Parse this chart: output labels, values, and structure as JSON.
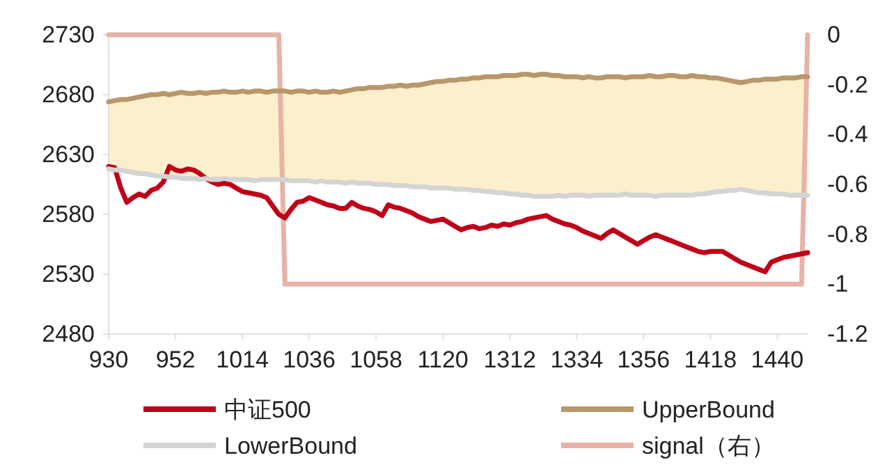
{
  "chart_data": {
    "type": "line",
    "categories": [
      "930",
      null,
      null,
      null,
      null,
      null,
      null,
      null,
      null,
      null,
      null,
      "952",
      null,
      null,
      null,
      null,
      null,
      null,
      null,
      null,
      null,
      null,
      "1014",
      null,
      null,
      null,
      null,
      null,
      null,
      null,
      null,
      null,
      null,
      "1036",
      null,
      null,
      null,
      null,
      null,
      null,
      null,
      null,
      null,
      null,
      "1058",
      null,
      null,
      null,
      null,
      null,
      null,
      null,
      null,
      null,
      null,
      "1120",
      null,
      null,
      null,
      null,
      null,
      null,
      null,
      null,
      null,
      null,
      "1312",
      null,
      null,
      null,
      null,
      null,
      null,
      null,
      null,
      null,
      null,
      "1334",
      null,
      null,
      null,
      null,
      null,
      null,
      null,
      null,
      null,
      null,
      "1356",
      null,
      null,
      null,
      null,
      null,
      null,
      null,
      null,
      null,
      null,
      "1418",
      null,
      null,
      null,
      null,
      null,
      null,
      null,
      null,
      null,
      null,
      "1440",
      null,
      null,
      null,
      null,
      null
    ],
    "series": [
      {
        "name": "中证500",
        "color": "#c00018",
        "values": [
          2620,
          2619,
          2602,
          2590,
          2594,
          2597,
          2595,
          2600,
          2602,
          2607,
          2620,
          2617,
          2616,
          2618,
          2617,
          2614,
          2610,
          2607,
          2605,
          2606,
          2605,
          2602,
          2599,
          2598,
          2597,
          2596,
          2594,
          2587,
          2580,
          2577,
          2584,
          2590,
          2591,
          2594,
          2592,
          2590,
          2588,
          2587,
          2585,
          2585,
          2590,
          2587,
          2585,
          2584,
          2582,
          2579,
          2588,
          2586,
          2585,
          2583,
          2581,
          2578,
          2576,
          2574,
          2575,
          2576,
          2573,
          2570,
          2567,
          2569,
          2570,
          2568,
          2569,
          2571,
          2570,
          2572,
          2571,
          2573,
          2574,
          2576,
          2577,
          2578,
          2579,
          2576,
          2574,
          2572,
          2571,
          2569,
          2566,
          2564,
          2562,
          2560,
          2564,
          2567,
          2564,
          2561,
          2558,
          2555,
          2558,
          2561,
          2563,
          2561,
          2559,
          2557,
          2555,
          2553,
          2551,
          2549,
          2548,
          2549,
          2549,
          2549,
          2546,
          2543,
          2540,
          2538,
          2536,
          2534,
          2532,
          2540,
          2542,
          2544,
          2545,
          2546,
          2547,
          2548
        ]
      },
      {
        "name": "UpperBound",
        "color": "#b8976a",
        "values": [
          2674,
          2675,
          2676,
          2676,
          2677,
          2678,
          2679,
          2680,
          2680,
          2681,
          2680,
          2681,
          2682,
          2681,
          2681,
          2682,
          2681,
          2682,
          2682,
          2683,
          2682,
          2682,
          2683,
          2682,
          2683,
          2683,
          2682,
          2683,
          2683,
          2683,
          2682,
          2683,
          2683,
          2682,
          2683,
          2682,
          2682,
          2683,
          2682,
          2683,
          2684,
          2685,
          2685,
          2686,
          2686,
          2686,
          2687,
          2687,
          2688,
          2687,
          2688,
          2688,
          2689,
          2690,
          2691,
          2691,
          2692,
          2692,
          2693,
          2693,
          2694,
          2694,
          2695,
          2695,
          2695,
          2696,
          2696,
          2696,
          2697,
          2697,
          2696,
          2697,
          2697,
          2696,
          2696,
          2695,
          2695,
          2695,
          2694,
          2695,
          2694,
          2694,
          2695,
          2695,
          2695,
          2694,
          2695,
          2695,
          2695,
          2696,
          2695,
          2695,
          2696,
          2696,
          2695,
          2695,
          2696,
          2695,
          2695,
          2694,
          2694,
          2693,
          2692,
          2691,
          2690,
          2691,
          2692,
          2692,
          2693,
          2693,
          2693,
          2694,
          2694,
          2694,
          2695,
          2695
        ],
        "lower": [
          2618,
          2617,
          2617,
          2616,
          2615,
          2614,
          2614,
          2613,
          2612,
          2612,
          2611,
          2611,
          2610,
          2610,
          2610,
          2609,
          2610,
          2609,
          2609,
          2610,
          2609,
          2609,
          2609,
          2609,
          2608,
          2609,
          2609,
          2609,
          2609,
          2609,
          2608,
          2608,
          2608,
          2608,
          2607,
          2608,
          2607,
          2607,
          2607,
          2606,
          2607,
          2606,
          2606,
          2606,
          2605,
          2605,
          2605,
          2604,
          2604,
          2604,
          2603,
          2603,
          2603,
          2602,
          2602,
          2602,
          2602,
          2601,
          2601,
          2601,
          2600,
          2600,
          2599,
          2599,
          2598,
          2598,
          2597,
          2597,
          2596,
          2596,
          2595,
          2595,
          2595,
          2595,
          2596,
          2595,
          2596,
          2596,
          2596,
          2595,
          2596,
          2596,
          2596,
          2596,
          2596,
          2597,
          2596,
          2596,
          2596,
          2596,
          2595,
          2596,
          2596,
          2596,
          2596,
          2596,
          2596,
          2597,
          2597,
          2598,
          2599,
          2599,
          2600,
          2600,
          2601,
          2600,
          2599,
          2598,
          2598,
          2597,
          2597,
          2597,
          2596,
          2596,
          2596,
          2596
        ],
        "upper": [
          2674,
          2675,
          2676,
          2676,
          2677,
          2678,
          2679,
          2680,
          2680,
          2681,
          2680,
          2681,
          2682,
          2681,
          2681,
          2682,
          2681,
          2682,
          2682,
          2683,
          2682,
          2682,
          2683,
          2682,
          2683,
          2683,
          2682,
          2683,
          2683,
          2683,
          2682,
          2683,
          2683,
          2682,
          2683,
          2682,
          2682,
          2683,
          2682,
          2683,
          2684,
          2685,
          2685,
          2686,
          2686,
          2686,
          2687,
          2687,
          2688,
          2687,
          2688,
          2688,
          2689,
          2690,
          2691,
          2691,
          2692,
          2692,
          2693,
          2693,
          2694,
          2694,
          2695,
          2695,
          2695,
          2696,
          2696,
          2696,
          2697,
          2697,
          2696,
          2697,
          2697,
          2696,
          2696,
          2695,
          2695,
          2695,
          2694,
          2695,
          2694,
          2694,
          2695,
          2695,
          2695,
          2694,
          2695,
          2695,
          2695,
          2696,
          2695,
          2695,
          2696,
          2696,
          2695,
          2695,
          2696,
          2695,
          2695,
          2694,
          2694,
          2693,
          2692,
          2691,
          2690,
          2691,
          2692,
          2692,
          2693,
          2693,
          2693,
          2694,
          2694,
          2694,
          2695,
          2695
        ]
      },
      {
        "name": "LowerBound",
        "color": "#d4d4d4",
        "values": [
          2618,
          2617,
          2617,
          2616,
          2615,
          2614,
          2614,
          2613,
          2612,
          2612,
          2611,
          2611,
          2610,
          2610,
          2610,
          2609,
          2610,
          2609,
          2609,
          2610,
          2609,
          2609,
          2609,
          2609,
          2608,
          2609,
          2609,
          2609,
          2609,
          2609,
          2608,
          2608,
          2608,
          2608,
          2607,
          2608,
          2607,
          2607,
          2607,
          2606,
          2607,
          2606,
          2606,
          2606,
          2605,
          2605,
          2605,
          2604,
          2604,
          2604,
          2603,
          2603,
          2603,
          2602,
          2602,
          2602,
          2602,
          2601,
          2601,
          2601,
          2600,
          2600,
          2599,
          2599,
          2598,
          2598,
          2597,
          2597,
          2596,
          2596,
          2595,
          2595,
          2595,
          2595,
          2596,
          2595,
          2596,
          2596,
          2596,
          2595,
          2596,
          2596,
          2596,
          2596,
          2596,
          2597,
          2596,
          2596,
          2596,
          2596,
          2595,
          2596,
          2596,
          2596,
          2596,
          2596,
          2596,
          2597,
          2597,
          2598,
          2599,
          2599,
          2600,
          2600,
          2601,
          2600,
          2599,
          2598,
          2598,
          2597,
          2597,
          2597,
          2596,
          2596,
          2596,
          2596
        ]
      },
      {
        "name": "signal（右）",
        "color": "#e8b2a6",
        "axis": "y2",
        "values": [
          0,
          0,
          0,
          0,
          0,
          0,
          0,
          0,
          0,
          0,
          0,
          0,
          0,
          0,
          0,
          0,
          0,
          0,
          0,
          0,
          0,
          0,
          0,
          0,
          0,
          0,
          0,
          0,
          0,
          -1,
          -1,
          -1,
          -1,
          -1,
          -1,
          -1,
          -1,
          -1,
          -1,
          -1,
          -1,
          -1,
          -1,
          -1,
          -1,
          -1,
          -1,
          -1,
          -1,
          -1,
          -1,
          -1,
          -1,
          -1,
          -1,
          -1,
          -1,
          -1,
          -1,
          -1,
          -1,
          -1,
          -1,
          -1,
          -1,
          -1,
          -1,
          -1,
          -1,
          -1,
          -1,
          -1,
          -1,
          -1,
          -1,
          -1,
          -1,
          -1,
          -1,
          -1,
          -1,
          -1,
          -1,
          -1,
          -1,
          -1,
          -1,
          -1,
          -1,
          -1,
          -1,
          -1,
          -1,
          -1,
          -1,
          -1,
          -1,
          -1,
          -1,
          -1,
          -1,
          -1,
          -1,
          -1,
          -1,
          -1,
          -1,
          -1,
          -1,
          -1,
          -1,
          -1,
          -1,
          -1,
          -1,
          0
        ]
      }
    ],
    "ylim": [
      2480,
      2730
    ],
    "yticks": [
      2480,
      2530,
      2580,
      2630,
      2680,
      2730
    ],
    "y2lim": [
      -1.2,
      0
    ],
    "y2ticks": [
      -1.2,
      -1,
      -0.8,
      -0.6,
      -0.4,
      -0.2,
      0
    ],
    "legend": "bottom"
  }
}
